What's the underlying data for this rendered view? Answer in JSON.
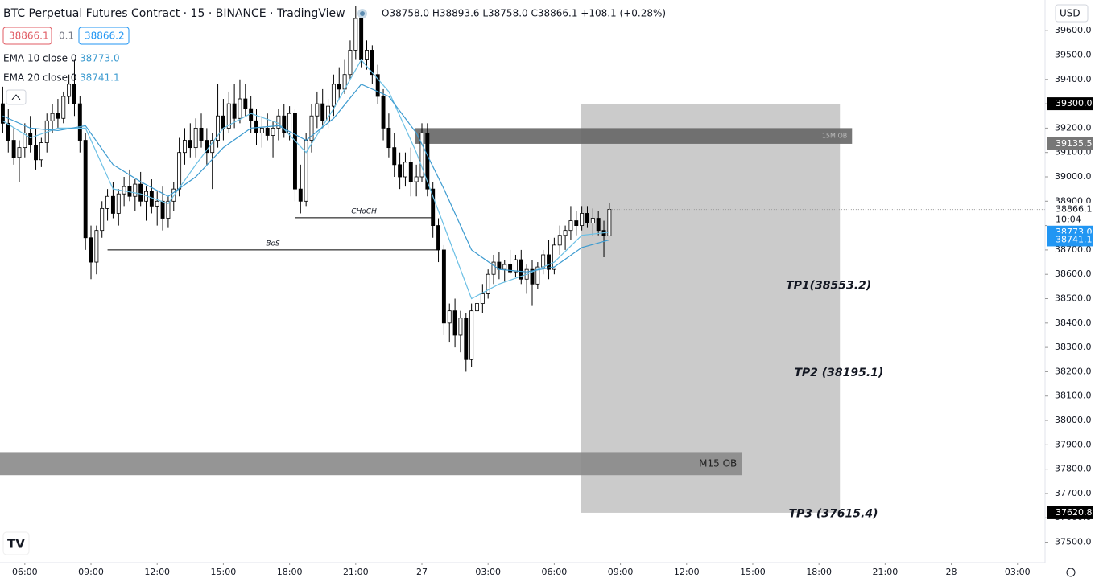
{
  "header": {
    "symbol": "BTC Perpetual Futures Contract · 15 · BINANCE · TradingView",
    "ohlc": "O38758.0 H38893.6 L38758.0 C38866.1 +108.1 (+0.28%)",
    "bid": "38866.1",
    "spread": "0.1",
    "ask": "38866.2",
    "currency": "USD",
    "ema1_label": "EMA 10 close 0",
    "ema1_value": "38773.0",
    "ema2_label": "EMA 20 close 0",
    "ema2_value": "38741.1"
  },
  "chart_data": {
    "type": "candlestick",
    "xlim": [
      -0.5,
      189
    ],
    "ylim": [
      37416,
      39726
    ],
    "xticks": [
      {
        "value": 4,
        "label": "06:00"
      },
      {
        "value": 16,
        "label": "09:00"
      },
      {
        "value": 28,
        "label": "12:00"
      },
      {
        "value": 40,
        "label": "15:00"
      },
      {
        "value": 52,
        "label": "18:00"
      },
      {
        "value": 64,
        "label": "21:00"
      },
      {
        "value": 76,
        "label": "27"
      },
      {
        "value": 88,
        "label": "03:00"
      },
      {
        "value": 100,
        "label": "06:00"
      },
      {
        "value": 112,
        "label": "09:00"
      },
      {
        "value": 124,
        "label": "12:00"
      },
      {
        "value": 136,
        "label": "15:00"
      },
      {
        "value": 148,
        "label": "18:00"
      },
      {
        "value": 160,
        "label": "21:00"
      },
      {
        "value": 172,
        "label": "28"
      },
      {
        "value": 184,
        "label": "03:00"
      }
    ],
    "yticks": [
      {
        "value": 37500,
        "label": "37500.0"
      },
      {
        "value": 37600,
        "label": "37600.0"
      },
      {
        "value": 37700,
        "label": "37700.0"
      },
      {
        "value": 37800,
        "label": "37800.0"
      },
      {
        "value": 37900,
        "label": "37900.0"
      },
      {
        "value": 38000,
        "label": "38000.0"
      },
      {
        "value": 38100,
        "label": "38100.0"
      },
      {
        "value": 38200,
        "label": "38200.0"
      },
      {
        "value": 38300,
        "label": "38300.0"
      },
      {
        "value": 38400,
        "label": "38400.0"
      },
      {
        "value": 38500,
        "label": "38500.0"
      },
      {
        "value": 38600,
        "label": "38600.0"
      },
      {
        "value": 38700,
        "label": "38700.0"
      },
      {
        "value": 38800,
        "label": "38800.0"
      },
      {
        "value": 38900,
        "label": "38900.0"
      },
      {
        "value": 39000,
        "label": "39000.0"
      },
      {
        "value": 39100,
        "label": "39100.0"
      },
      {
        "value": 39200,
        "label": "39200.0"
      },
      {
        "value": 39300,
        "label": "39300.0"
      },
      {
        "value": 39400,
        "label": "39400.0"
      },
      {
        "value": 39500,
        "label": "39500.0"
      },
      {
        "value": 39600,
        "label": "39600.0"
      }
    ],
    "up_color": "#ffffff",
    "down_color": "#000000",
    "candles": [
      [
        39300,
        39370,
        39180,
        39220
      ],
      [
        39220,
        39280,
        39100,
        39150
      ],
      [
        39150,
        39200,
        39050,
        39080
      ],
      [
        39080,
        39150,
        38980,
        39120
      ],
      [
        39120,
        39220,
        39080,
        39180
      ],
      [
        39180,
        39250,
        39100,
        39130
      ],
      [
        39130,
        39200,
        39030,
        39070
      ],
      [
        39070,
        39160,
        39040,
        39140
      ],
      [
        39140,
        39260,
        39100,
        39230
      ],
      [
        39230,
        39300,
        39180,
        39260
      ],
      [
        39260,
        39320,
        39200,
        39240
      ],
      [
        39240,
        39350,
        39220,
        39330
      ],
      [
        39330,
        39420,
        39300,
        39380
      ],
      [
        39380,
        39480,
        39250,
        39300
      ],
      [
        39300,
        39330,
        39100,
        39150
      ],
      [
        39150,
        39180,
        38700,
        38750
      ],
      [
        38750,
        38800,
        38580,
        38650
      ],
      [
        38650,
        38800,
        38600,
        38780
      ],
      [
        38780,
        38900,
        38750,
        38870
      ],
      [
        38870,
        38950,
        38820,
        38920
      ],
      [
        38920,
        38980,
        38830,
        38850
      ],
      [
        38850,
        38950,
        38800,
        38930
      ],
      [
        38930,
        39000,
        38880,
        38960
      ],
      [
        38960,
        39030,
        38900,
        38920
      ],
      [
        38920,
        38990,
        38860,
        38970
      ],
      [
        38970,
        39020,
        38880,
        38900
      ],
      [
        38900,
        38960,
        38820,
        38940
      ],
      [
        38940,
        38990,
        38850,
        38880
      ],
      [
        38880,
        38940,
        38800,
        38900
      ],
      [
        38900,
        38960,
        38780,
        38830
      ],
      [
        38830,
        38920,
        38790,
        38900
      ],
      [
        38900,
        38980,
        38860,
        38950
      ],
      [
        38950,
        39160,
        38920,
        39100
      ],
      [
        39100,
        39200,
        39050,
        39150
      ],
      [
        39150,
        39220,
        39080,
        39120
      ],
      [
        39120,
        39240,
        39080,
        39200
      ],
      [
        39200,
        39260,
        39120,
        39150
      ],
      [
        39150,
        39200,
        39050,
        39100
      ],
      [
        39100,
        39180,
        38950,
        39150
      ],
      [
        39150,
        39380,
        39120,
        39250
      ],
      [
        39250,
        39320,
        39150,
        39200
      ],
      [
        39200,
        39350,
        39180,
        39300
      ],
      [
        39300,
        39380,
        39200,
        39240
      ],
      [
        39240,
        39400,
        39220,
        39320
      ],
      [
        39320,
        39380,
        39250,
        39280
      ],
      [
        39280,
        39330,
        39180,
        39230
      ],
      [
        39230,
        39280,
        39130,
        39180
      ],
      [
        39180,
        39250,
        39120,
        39200
      ],
      [
        39200,
        39260,
        39150,
        39170
      ],
      [
        39170,
        39230,
        39080,
        39200
      ],
      [
        39200,
        39280,
        39150,
        39250
      ],
      [
        39250,
        39300,
        39160,
        39180
      ],
      [
        39180,
        39290,
        39150,
        39260
      ],
      [
        39260,
        39280,
        38900,
        38950
      ],
      [
        38950,
        39050,
        38850,
        38900
      ],
      [
        38900,
        39180,
        38880,
        39150
      ],
      [
        39150,
        39300,
        39100,
        39250
      ],
      [
        39250,
        39350,
        39200,
        39300
      ],
      [
        39300,
        39360,
        39200,
        39230
      ],
      [
        39230,
        39320,
        39200,
        39290
      ],
      [
        39290,
        39420,
        39250,
        39380
      ],
      [
        39380,
        39450,
        39320,
        39360
      ],
      [
        39360,
        39480,
        39340,
        39420
      ],
      [
        39420,
        39560,
        39400,
        39520
      ],
      [
        39520,
        39700,
        39480,
        39650
      ],
      [
        39650,
        39660,
        39450,
        39480
      ],
      [
        39480,
        39560,
        39440,
        39520
      ],
      [
        39520,
        39540,
        39380,
        39420
      ],
      [
        39420,
        39460,
        39300,
        39330
      ],
      [
        39330,
        39360,
        39150,
        39200
      ],
      [
        39200,
        39260,
        39080,
        39120
      ],
      [
        39120,
        39180,
        39000,
        39050
      ],
      [
        39050,
        39100,
        38950,
        39000
      ],
      [
        39000,
        39100,
        38960,
        39060
      ],
      [
        39060,
        39120,
        38920,
        38980
      ],
      [
        38980,
        39050,
        38920,
        39000
      ],
      [
        39000,
        39220,
        38980,
        39180
      ],
      [
        39180,
        39220,
        38920,
        38950
      ],
      [
        38950,
        38980,
        38750,
        38800
      ],
      [
        38800,
        38830,
        38650,
        38700
      ],
      [
        38700,
        38720,
        38350,
        38400
      ],
      [
        38400,
        38480,
        38320,
        38450
      ],
      [
        38450,
        38500,
        38300,
        38350
      ],
      [
        38350,
        38450,
        38280,
        38420
      ],
      [
        38420,
        38440,
        38200,
        38250
      ],
      [
        38250,
        38480,
        38220,
        38450
      ],
      [
        38450,
        38520,
        38400,
        38480
      ],
      [
        38480,
        38560,
        38440,
        38520
      ],
      [
        38520,
        38620,
        38500,
        38600
      ],
      [
        38600,
        38680,
        38560,
        38650
      ],
      [
        38650,
        38690,
        38580,
        38620
      ],
      [
        38620,
        38660,
        38570,
        38640
      ],
      [
        38640,
        38700,
        38600,
        38610
      ],
      [
        38610,
        38680,
        38590,
        38660
      ],
      [
        38660,
        38700,
        38560,
        38580
      ],
      [
        38580,
        38640,
        38520,
        38620
      ],
      [
        38620,
        38660,
        38470,
        38560
      ],
      [
        38560,
        38650,
        38540,
        38630
      ],
      [
        38630,
        38700,
        38600,
        38680
      ],
      [
        38680,
        38740,
        38580,
        38620
      ],
      [
        38620,
        38750,
        38600,
        38720
      ],
      [
        38720,
        38800,
        38680,
        38760
      ],
      [
        38760,
        38800,
        38700,
        38780
      ],
      [
        38780,
        38880,
        38740,
        38820
      ],
      [
        38820,
        38860,
        38760,
        38800
      ],
      [
        38800,
        38880,
        38780,
        38850
      ],
      [
        38850,
        38880,
        38790,
        38810
      ],
      [
        38810,
        38870,
        38760,
        38830
      ],
      [
        38830,
        38860,
        38760,
        38780
      ],
      [
        38780,
        38820,
        38670,
        38760
      ],
      [
        38758,
        38893.6,
        38758,
        38866.1
      ]
    ],
    "series": [
      {
        "name": "EMA 10",
        "color": "#6cc0e5",
        "x": [
          0,
          5,
          10,
          15,
          20,
          25,
          30,
          35,
          40,
          45,
          50,
          55,
          60,
          65,
          70,
          75,
          80,
          85,
          90,
          95,
          100,
          105,
          110
        ],
        "values": [
          39230,
          39160,
          39200,
          39200,
          38950,
          38930,
          38890,
          39050,
          39200,
          39260,
          39220,
          39100,
          39280,
          39480,
          39350,
          39100,
          38800,
          38500,
          38560,
          38600,
          38650,
          38760,
          38773
        ]
      },
      {
        "name": "EMA 20",
        "color": "#3d9bd0",
        "x": [
          0,
          5,
          10,
          15,
          20,
          25,
          30,
          35,
          40,
          45,
          50,
          55,
          60,
          65,
          70,
          75,
          80,
          85,
          90,
          95,
          100,
          105,
          110
        ],
        "values": [
          39250,
          39200,
          39190,
          39210,
          39050,
          38980,
          38920,
          39000,
          39120,
          39200,
          39210,
          39150,
          39240,
          39380,
          39330,
          39180,
          38950,
          38700,
          38620,
          38610,
          38630,
          38710,
          38741.1
        ]
      }
    ],
    "zones": [
      {
        "label": "",
        "top": 39300,
        "bottom": 37620.8,
        "x0": 104.9,
        "x1": 151.8,
        "color": "#c8c8c8"
      },
      {
        "label": "15M OB",
        "top": 39200,
        "bottom": 39135.5,
        "x0": 74.8,
        "x1": 154,
        "color": "#666666"
      },
      {
        "label": "M15 OB",
        "top": 37870,
        "bottom": 37775,
        "x0": -0.5,
        "x1": 134,
        "color": "#8a8a8a"
      }
    ],
    "levels": [
      {
        "label": "BoS",
        "value": 38700,
        "x0": 19,
        "x1": 79
      },
      {
        "label": "CHoCH",
        "value": 38832,
        "x0": 53,
        "x1": 78
      }
    ],
    "annotations": [
      {
        "text": "TP1(38553.2)",
        "value": 38553.2,
        "x": 142
      },
      {
        "text": "TP2 (38195.1)",
        "value": 38195.1,
        "x": 143.5
      },
      {
        "text": "TP3 (37615.4)",
        "value": 37615.4,
        "x": 142.5
      }
    ],
    "price_labels": [
      {
        "value": 39300,
        "label": "39300.0",
        "color": "#000000"
      },
      {
        "value": 39135.5,
        "label": "39135.5",
        "color": "#777777"
      },
      {
        "value": 38866.1,
        "label": "38866.1",
        "sub": "10:04",
        "color": "#ffffff"
      },
      {
        "value": 38773,
        "label": "38773.0",
        "color": "#2196f3"
      },
      {
        "value": 38741.1,
        "label": "38741.1",
        "color": "#2196f3"
      },
      {
        "value": 37620.8,
        "label": "37620.8",
        "color": "#000000"
      }
    ]
  }
}
